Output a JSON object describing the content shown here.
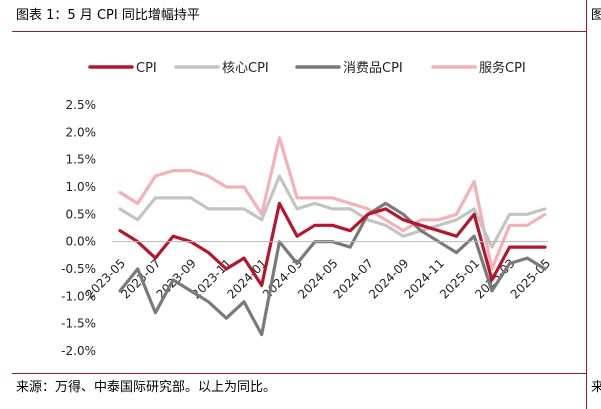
{
  "header": {
    "title": "图表 1：5 月 CPI 同比增幅持平",
    "right_cut": "图"
  },
  "footer": {
    "source": "来源：万得、中泰国际研究部。以上为同比。",
    "right_cut": "来"
  },
  "colors": {
    "cpi": "#b5162d",
    "core_cpi": "#c4c4c4",
    "consumer_goods_cpi": "#7a7a7a",
    "services_cpi": "#f4b0b6",
    "frame_rule": "#9b1b30"
  },
  "chart_data": {
    "type": "line",
    "x": [
      "2023-05",
      "2023-06",
      "2023-07",
      "2023-08",
      "2023-09",
      "2023-10",
      "2023-11",
      "2023-12",
      "2024-01",
      "2024-02",
      "2024-03",
      "2024-04",
      "2024-05",
      "2024-06",
      "2024-07",
      "2024-08",
      "2024-09",
      "2024-10",
      "2024-11",
      "2024-12",
      "2025-01",
      "2025-02",
      "2025-03",
      "2025-04",
      "2025-05"
    ],
    "x_tick_labels": [
      "2023-05",
      "2023-07",
      "2023-09",
      "2023-11",
      "2024-01",
      "2024-03",
      "2024-05",
      "2024-07",
      "2024-09",
      "2024-11",
      "2025-01",
      "2025-03",
      "2025-05"
    ],
    "y_tick_labels": [
      "2.5%",
      "2.0%",
      "1.5%",
      "1.0%",
      "0.5%",
      "0.0%",
      "-0.5%",
      "-1.0%",
      "-1.5%",
      "-2.0%"
    ],
    "ylim": [
      -2.0,
      2.5
    ],
    "legend": "top",
    "grid": false,
    "series": [
      {
        "name": "CPI",
        "color": "#b5162d",
        "values": [
          0.2,
          0.0,
          -0.3,
          0.1,
          0.0,
          -0.2,
          -0.5,
          -0.3,
          -0.8,
          0.7,
          0.1,
          0.3,
          0.3,
          0.2,
          0.5,
          0.6,
          0.4,
          0.3,
          0.2,
          0.1,
          0.5,
          -0.7,
          -0.1,
          -0.1,
          -0.1
        ]
      },
      {
        "name": "核心CPI",
        "color": "#c4c4c4",
        "values": [
          0.6,
          0.4,
          0.8,
          0.8,
          0.8,
          0.6,
          0.6,
          0.6,
          0.4,
          1.2,
          0.6,
          0.7,
          0.6,
          0.6,
          0.4,
          0.3,
          0.1,
          0.2,
          0.3,
          0.4,
          0.6,
          -0.1,
          0.5,
          0.5,
          0.6
        ]
      },
      {
        "name": "消费品CPI",
        "color": "#7a7a7a",
        "values": [
          -0.9,
          -0.5,
          -1.3,
          -0.7,
          -0.9,
          -1.1,
          -1.4,
          -1.1,
          -1.7,
          0.0,
          -0.4,
          0.0,
          0.0,
          -0.1,
          0.5,
          0.7,
          0.5,
          0.2,
          0.0,
          -0.2,
          0.1,
          -0.9,
          -0.4,
          -0.3,
          -0.5
        ]
      },
      {
        "name": "服务CPI",
        "color": "#f4b0b6",
        "values": [
          0.9,
          0.7,
          1.2,
          1.3,
          1.3,
          1.2,
          1.0,
          1.0,
          0.5,
          1.9,
          0.8,
          0.8,
          0.8,
          0.7,
          0.6,
          0.4,
          0.2,
          0.4,
          0.4,
          0.5,
          1.1,
          -0.5,
          0.3,
          0.3,
          0.5
        ]
      }
    ]
  }
}
